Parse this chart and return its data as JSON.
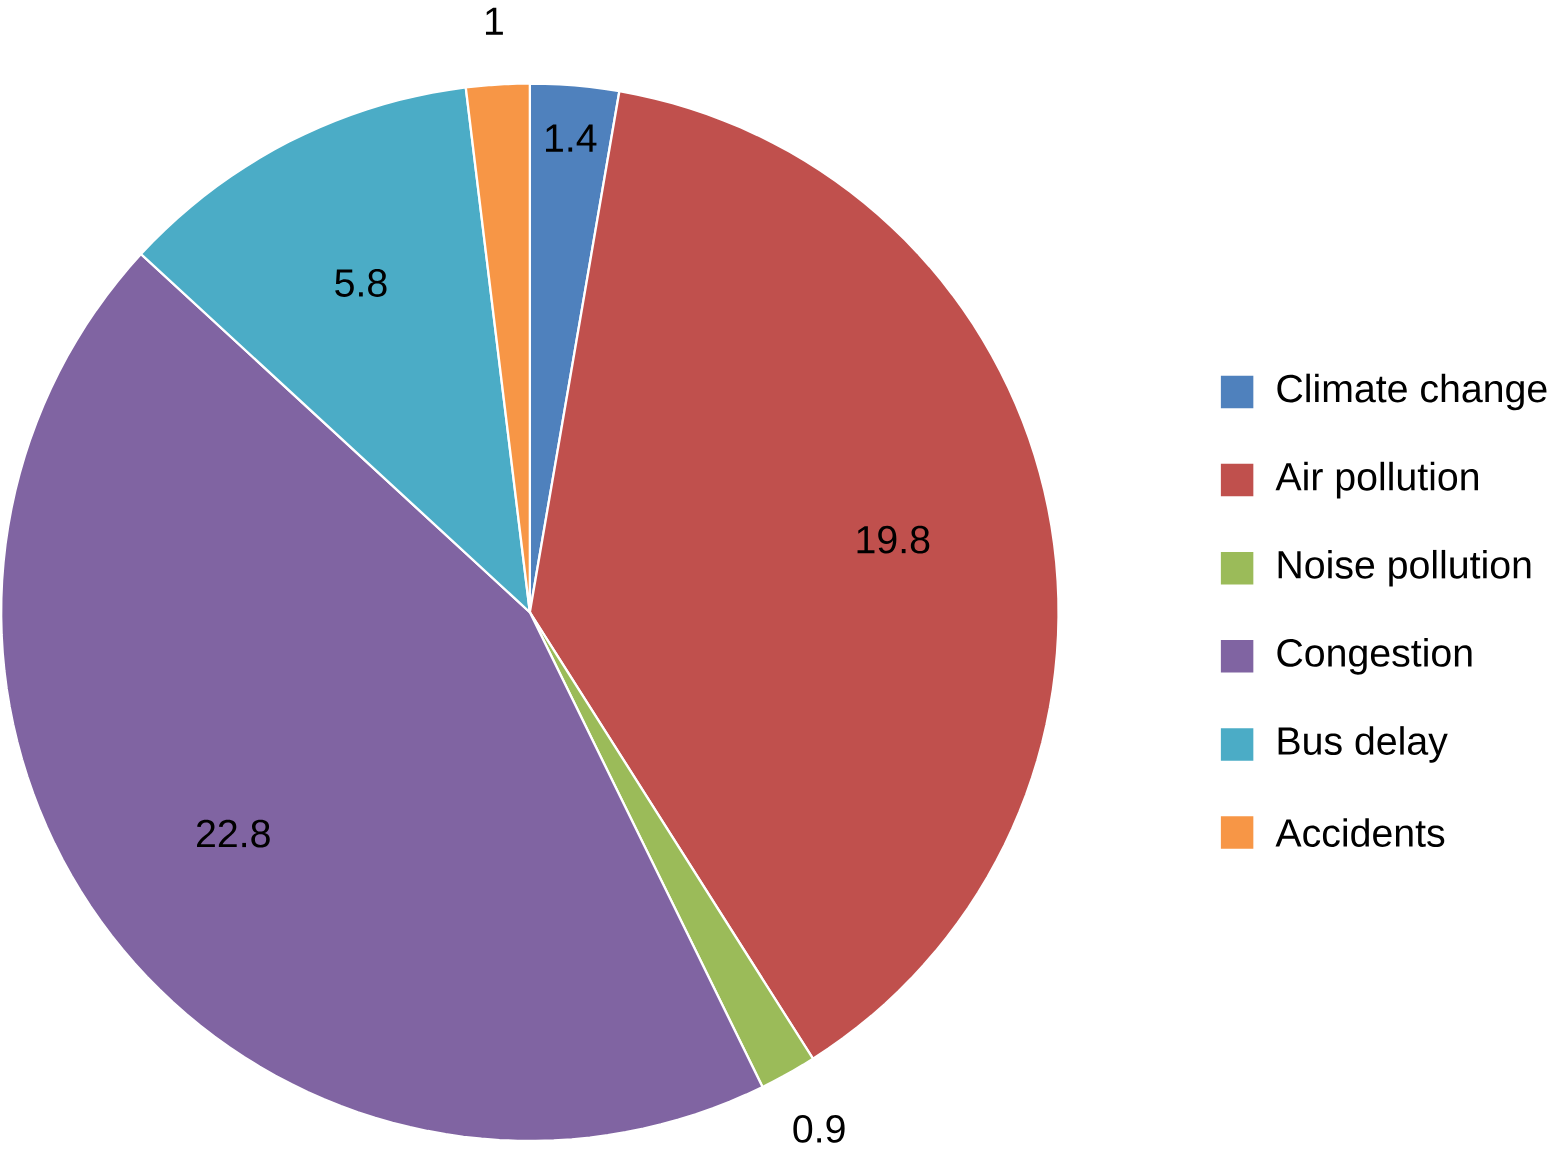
{
  "chart_data": {
    "type": "pie",
    "categories": [
      "Climate change",
      "Air pollution",
      "Noise pollution",
      "Congestion",
      "Bus delay",
      "Accidents"
    ],
    "values": [
      1.4,
      19.8,
      0.9,
      22.8,
      5.8,
      1
    ],
    "colors": [
      "#4f81bd",
      "#c0504d",
      "#9bbb59",
      "#8064a2",
      "#4bacc6",
      "#f79646"
    ],
    "data_labels": true,
    "legend": "right"
  }
}
